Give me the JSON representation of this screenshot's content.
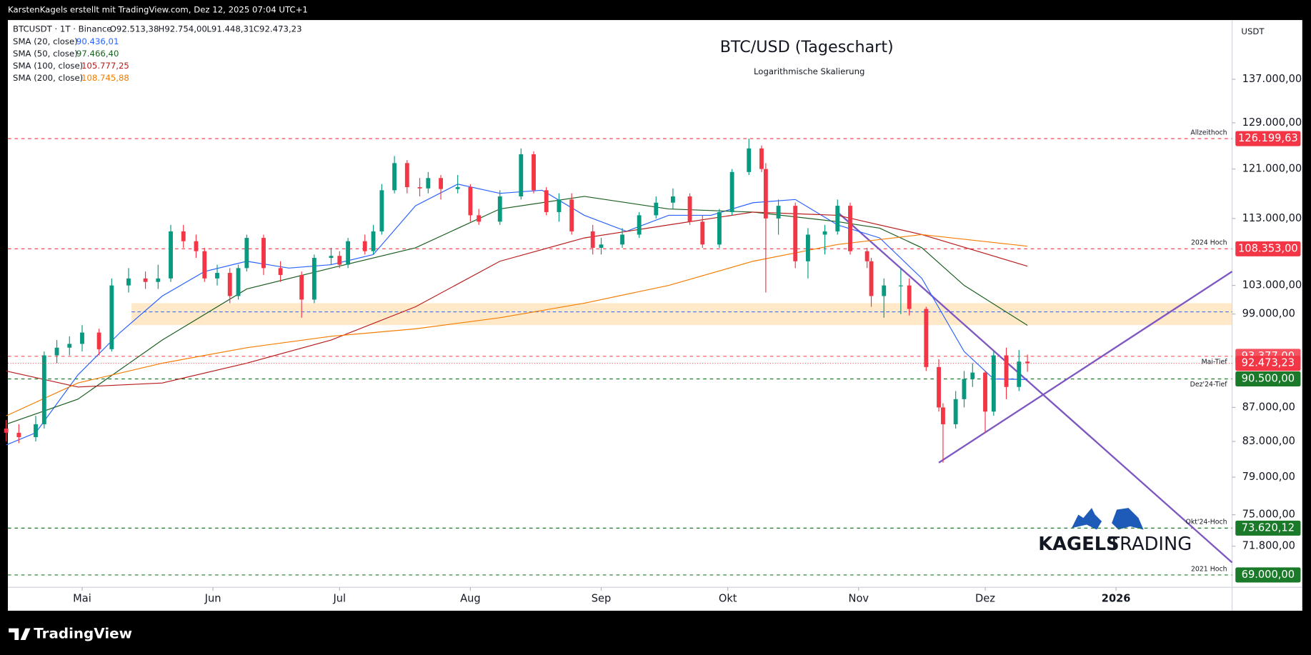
{
  "chart_data": {
    "type": "candlestick",
    "watermark": "KarstenKagels erstellt mit TradingView.com, Dez 12, 2025 07:04 UTC+1",
    "title": "BTC/USD (Tageschart)",
    "subtitle": "Logarithmische Skalierung",
    "header": [
      "BTCUSDT · 1T · Binance",
      "O92.513,38",
      "H92.754,00",
      "L91.448,31",
      "C92.473,23"
    ],
    "currency": "USDT",
    "log_scale": true,
    "ylim": [
      67830,
      148700
    ],
    "yticks": [
      {
        "value": 137000,
        "label": "137.000,00"
      },
      {
        "value": 129000,
        "label": "129.000,00"
      },
      {
        "value": 121000,
        "label": "121.000,00"
      },
      {
        "value": 113000,
        "label": "113.000,00"
      },
      {
        "value": 103000,
        "label": "103.000,00"
      },
      {
        "value": 99000,
        "label": "99.000,00"
      },
      {
        "value": 87000,
        "label": "87.000,00"
      },
      {
        "value": 83000,
        "label": "83.000,00"
      },
      {
        "value": 79000,
        "label": "79.000,00"
      },
      {
        "value": 75000,
        "label": "75.000,00"
      },
      {
        "value": 71800,
        "label": "71.800,00"
      }
    ],
    "xlim": [
      103.4,
      393.5
    ],
    "xticks": [
      {
        "value": 121,
        "label": "Mai"
      },
      {
        "value": 152,
        "label": "Jun"
      },
      {
        "value": 182,
        "label": "Jul"
      },
      {
        "value": 213,
        "label": "Aug"
      },
      {
        "value": 244,
        "label": "Sep"
      },
      {
        "value": 274,
        "label": "Okt"
      },
      {
        "value": 305,
        "label": "Nov"
      },
      {
        "value": 335,
        "label": "Dez"
      },
      {
        "value": 366,
        "label": "2026"
      }
    ],
    "up_color": "#089981",
    "down_color": "#f23645",
    "x": [
      103,
      106,
      110,
      112,
      115,
      118,
      121,
      125,
      128,
      132,
      136,
      139,
      142,
      145,
      148,
      150,
      153,
      156,
      158,
      160,
      164,
      168,
      173,
      176,
      180,
      182,
      184,
      188,
      190,
      192,
      195,
      198,
      201,
      203,
      206,
      210,
      213,
      215,
      220,
      225,
      228,
      231,
      234,
      237,
      242,
      244,
      249,
      253,
      257,
      261,
      265,
      268,
      272,
      275,
      279,
      282,
      283,
      286,
      290,
      293,
      297,
      300,
      303,
      307,
      308,
      311,
      315,
      317,
      321,
      324,
      325,
      328,
      330,
      332,
      335,
      337,
      340,
      343,
      345
    ],
    "open": [
      84500,
      84000,
      83500,
      85000,
      93500,
      94500,
      95000,
      96500,
      94300,
      103000,
      104000,
      103500,
      104000,
      111000,
      109500,
      108000,
      104000,
      104800,
      101500,
      105500,
      110000,
      105500,
      104500,
      101000,
      107000,
      107300,
      106000,
      109500,
      108000,
      111000,
      117500,
      122000,
      118000,
      117800,
      119500,
      117700,
      118000,
      113500,
      112500,
      116500,
      123500,
      117500,
      114000,
      116000,
      111000,
      108500,
      109000,
      110500,
      113500,
      115500,
      116500,
      112500,
      109000,
      114000,
      120500,
      124500,
      121000,
      113000,
      115000,
      106500,
      110500,
      111000,
      115000,
      108000,
      106500,
      101500,
      103000,
      103000,
      99700,
      92000,
      87000,
      85000,
      88000,
      90500,
      91300,
      86500,
      93500,
      89500,
      92700
    ],
    "high": [
      85500,
      85000,
      86000,
      94000,
      95500,
      96000,
      97500,
      97000,
      104000,
      105500,
      105000,
      106000,
      112000,
      112000,
      110500,
      108500,
      106000,
      105500,
      106000,
      110500,
      110500,
      106500,
      105000,
      107500,
      108500,
      108000,
      110000,
      110500,
      112000,
      118500,
      123200,
      122500,
      119500,
      120500,
      120000,
      120000,
      118500,
      114500,
      117500,
      124500,
      124000,
      118000,
      117000,
      117000,
      112000,
      110000,
      111500,
      114000,
      116500,
      117800,
      117000,
      113500,
      114500,
      121000,
      126200,
      125000,
      122000,
      116000,
      115500,
      111500,
      112000,
      116000,
      115500,
      108500,
      107000,
      104000,
      105500,
      104000,
      100000,
      93000,
      87500,
      89000,
      91500,
      92500,
      91500,
      94000,
      94500,
      94200,
      93600
    ],
    "low": [
      83000,
      82800,
      83000,
      84500,
      92500,
      93500,
      94000,
      93500,
      94000,
      102000,
      102500,
      102500,
      103500,
      108500,
      107000,
      103500,
      103000,
      100500,
      101000,
      105000,
      104500,
      103500,
      98500,
      100500,
      106000,
      105500,
      105500,
      107500,
      107500,
      110500,
      117000,
      117000,
      116500,
      117000,
      116000,
      117000,
      112500,
      112000,
      112000,
      116000,
      117000,
      113500,
      112500,
      110500,
      107500,
      107500,
      108500,
      110000,
      113000,
      114500,
      112000,
      108500,
      108500,
      113500,
      120000,
      120500,
      102000,
      110500,
      105500,
      104000,
      107500,
      110500,
      107500,
      105500,
      100000,
      98500,
      99000,
      98800,
      91500,
      86500,
      80600,
      84500,
      87000,
      89500,
      84000,
      86000,
      88000,
      89000,
      91400
    ],
    "close": [
      84000,
      83500,
      85000,
      93500,
      94500,
      95000,
      96500,
      94300,
      103000,
      104000,
      103500,
      104000,
      111000,
      109500,
      108000,
      104000,
      104800,
      101500,
      105500,
      110000,
      105500,
      104500,
      101000,
      107000,
      107300,
      106000,
      109500,
      108000,
      111000,
      117500,
      122000,
      118000,
      117800,
      119500,
      117700,
      118000,
      113500,
      112500,
      116500,
      123500,
      117500,
      114000,
      116000,
      111000,
      108500,
      109000,
      110500,
      113500,
      115500,
      116500,
      112500,
      109000,
      114000,
      120500,
      124500,
      121000,
      113000,
      115000,
      106500,
      110500,
      111000,
      115000,
      108000,
      106500,
      101500,
      103000,
      103000,
      99700,
      92000,
      87000,
      85000,
      88000,
      90500,
      91300,
      86500,
      93500,
      89500,
      92700,
      92500
    ],
    "series": [
      {
        "name": "SMA (20, close)",
        "color": "#2962ff",
        "last_label": "90.436,01",
        "x": [
          103,
          110,
          120,
          130,
          140,
          150,
          160,
          170,
          180,
          190,
          200,
          210,
          220,
          230,
          240,
          250,
          260,
          270,
          280,
          290,
          300,
          310,
          320,
          330,
          337,
          345
        ],
        "values": [
          82600,
          84000,
          91000,
          96500,
          101500,
          105000,
          106500,
          105500,
          106000,
          107500,
          115000,
          118500,
          117000,
          117500,
          113500,
          111000,
          113500,
          113500,
          115500,
          116000,
          112000,
          110000,
          104000,
          94000,
          90500,
          90436
        ]
      },
      {
        "name": "SMA (50, close)",
        "color": "#1b5e20",
        "last_label": "97.466,40",
        "x": [
          103,
          120,
          140,
          160,
          180,
          200,
          220,
          240,
          260,
          280,
          300,
          310,
          320,
          330,
          345
        ],
        "values": [
          85000,
          88000,
          95500,
          102500,
          105500,
          108500,
          114500,
          116500,
          114500,
          114000,
          112500,
          111500,
          108500,
          103000,
          97466
        ]
      },
      {
        "name": "SMA (100, close)",
        "color": "#b71c1c",
        "last_label": "105.777,25",
        "x": [
          103,
          120,
          140,
          160,
          180,
          200,
          220,
          240,
          260,
          280,
          300,
          320,
          345
        ],
        "values": [
          91500,
          89500,
          90000,
          92500,
          95500,
          100000,
          106500,
          110000,
          112000,
          114000,
          113500,
          110500,
          105777
        ]
      },
      {
        "name": "SMA (200, close)",
        "color": "#f57c00",
        "last_label": "108.745,88",
        "x": [
          103,
          120,
          140,
          160,
          180,
          200,
          220,
          240,
          260,
          280,
          300,
          320,
          345
        ],
        "values": [
          86000,
          90000,
          92500,
          94500,
          96000,
          97000,
          98500,
          100500,
          103000,
          106500,
          109000,
          110500,
          108746
        ]
      }
    ],
    "levels": [
      {
        "name": "Allzeithoch",
        "value": 126199.63,
        "label": "126.199,63",
        "color": "#f23645"
      },
      {
        "name": "2024 Hoch",
        "value": 108353,
        "label": "108.353,00",
        "color": "#f23645"
      },
      {
        "name": "Mai-Tief",
        "value": 93377,
        "label": "93.377,00",
        "color": "#f7525f"
      },
      {
        "name": "Dez'24-Tief",
        "value": 90500,
        "label": "90.500,00",
        "color": "#1b7a2a"
      },
      {
        "name": "Okt'24-Hoch",
        "value": 73620.12,
        "label": "73.620,12",
        "color": "#1b7a2a"
      },
      {
        "name": "2021 Hoch",
        "value": 69000,
        "label": "69.000,00",
        "color": "#1b7a2a"
      }
    ],
    "last_price": {
      "value": 92473.23,
      "label": "92.473,23",
      "color": "#f23645"
    },
    "zone": [
      97500,
      100500
    ],
    "zone_line": 99300,
    "trendlines": [
      {
        "x": [
          300,
          393.5
        ],
        "values": [
          114000,
          70200
        ],
        "color": "#7e57c2"
      },
      {
        "x": [
          324,
          393.5
        ],
        "values": [
          80600,
          105000
        ],
        "color": "#7e57c2"
      }
    ],
    "logo": [
      "KAGELS",
      "TRADING"
    ],
    "footer": "TradingView"
  }
}
